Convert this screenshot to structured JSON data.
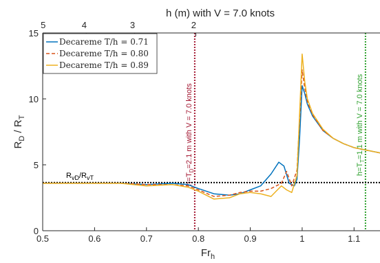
{
  "chart_data": {
    "type": "line",
    "title": "h (m) with V = 7.0 knots",
    "xlabel_main": "Fr",
    "xlabel_sub": "h",
    "ylabel_main": "R",
    "ylabel_sub1": "D",
    "ylabel_mid": " / R",
    "ylabel_sub2": "T",
    "xlim": [
      0.5,
      1.15
    ],
    "ylim": [
      0,
      15
    ],
    "x_ticks": [
      "0.5",
      "0.6",
      "0.7",
      "0.8",
      "0.9",
      "1",
      "1.1"
    ],
    "x_tick_values": [
      0.5,
      0.6,
      0.7,
      0.8,
      0.9,
      1.0,
      1.1
    ],
    "y_ticks": [
      "0",
      "5",
      "10",
      "15"
    ],
    "y_tick_values": [
      0,
      5,
      10,
      15
    ],
    "top_ticks": [
      "5",
      "4",
      "3",
      "2"
    ],
    "top_tick_fr": [
      0.505,
      0.584,
      0.677,
      0.795
    ],
    "legend_position": "top-left",
    "grid": false,
    "series": [
      {
        "name": "Decareme T/h = 0.71",
        "color": "#0072BD",
        "dash": "none",
        "x": [
          0.5,
          0.55,
          0.6,
          0.65,
          0.7,
          0.75,
          0.78,
          0.8,
          0.83,
          0.86,
          0.88,
          0.9,
          0.92,
          0.94,
          0.955,
          0.965,
          0.975,
          0.985,
          0.99,
          0.995,
          1.0,
          1.005,
          1.01,
          1.02,
          1.04,
          1.06,
          1.08,
          1.1,
          1.15
        ],
        "y": [
          3.6,
          3.6,
          3.6,
          3.6,
          3.5,
          3.6,
          3.5,
          3.2,
          2.8,
          2.7,
          2.8,
          3.1,
          3.4,
          4.3,
          5.2,
          4.9,
          3.6,
          3.4,
          3.9,
          7,
          11,
          10.4,
          9.6,
          8.7,
          7.6,
          7.0,
          6.6,
          6.3,
          5.9
        ]
      },
      {
        "name": "Decareme T/h = 0.80",
        "color": "#D95319",
        "dash": "5,3",
        "x": [
          0.5,
          0.55,
          0.6,
          0.65,
          0.7,
          0.75,
          0.78,
          0.8,
          0.83,
          0.86,
          0.88,
          0.9,
          0.92,
          0.94,
          0.96,
          0.97,
          0.98,
          0.99,
          1.0,
          1.005,
          1.01,
          1.02,
          1.04,
          1.06,
          1.08,
          1.1,
          1.15
        ],
        "y": [
          3.6,
          3.6,
          3.6,
          3.6,
          3.5,
          3.5,
          3.4,
          3.1,
          2.6,
          2.7,
          2.9,
          3.0,
          3.0,
          3.2,
          3.6,
          4.5,
          3.4,
          4.6,
          12.2,
          10.8,
          9.8,
          8.8,
          7.6,
          7.0,
          6.6,
          6.3,
          5.9
        ]
      },
      {
        "name": "Decareme T/h = 0.89",
        "color": "#EDB120",
        "dash": "none",
        "x": [
          0.5,
          0.55,
          0.6,
          0.65,
          0.7,
          0.75,
          0.78,
          0.8,
          0.83,
          0.86,
          0.88,
          0.9,
          0.92,
          0.94,
          0.95,
          0.96,
          0.97,
          0.98,
          0.99,
          1.0,
          1.005,
          1.01,
          1.02,
          1.04,
          1.06,
          1.08,
          1.1,
          1.15
        ],
        "y": [
          3.6,
          3.6,
          3.6,
          3.6,
          3.4,
          3.5,
          3.3,
          3.0,
          2.4,
          2.5,
          2.8,
          2.9,
          2.8,
          2.6,
          3.0,
          3.4,
          3.1,
          2.9,
          4.2,
          13.4,
          11.3,
          10.0,
          8.9,
          7.7,
          7.0,
          6.6,
          6.3,
          5.9
        ]
      }
    ],
    "reference_line": {
      "y": 3.65,
      "label_main": "R",
      "label_sub1": "vD",
      "label_mid": "/R",
      "label_sub2": "vT",
      "color": "#000000"
    },
    "vertical_lines": [
      {
        "x": 0.793,
        "color": "#A2142F",
        "label_main": "h=T",
        "label_sub": "D",
        "label_rest": "=2.1 m with V = 7.0 knots"
      },
      {
        "x": 1.122,
        "color": "#2CA02C",
        "label_main": "h=T",
        "label_sub": "T",
        "label_rest": "=1.1 m with V = 7.0 knots"
      }
    ]
  }
}
